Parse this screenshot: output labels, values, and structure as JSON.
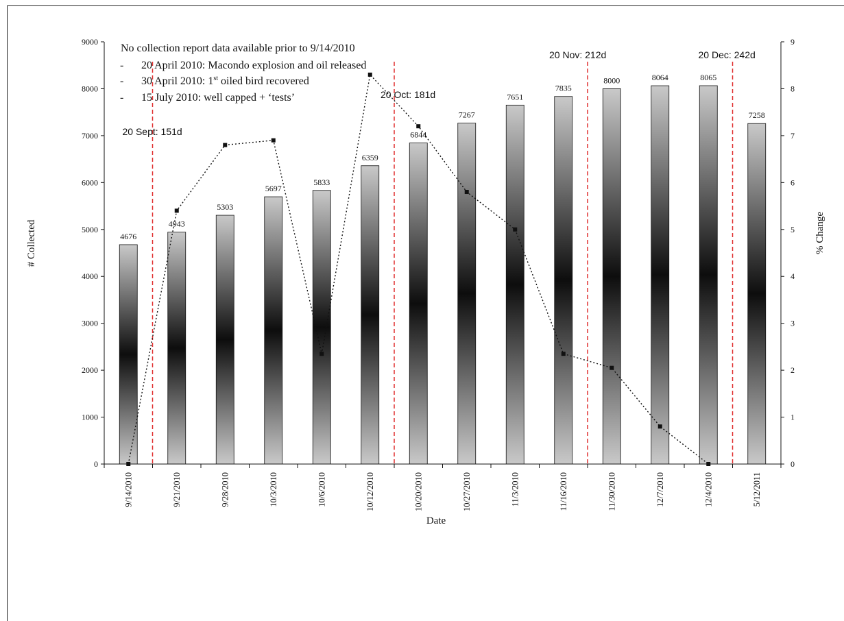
{
  "chart_data": {
    "type": "bar",
    "categories": [
      "9/14/2010",
      "9/21/2010",
      "9/28/2010",
      "10/3/2010",
      "10/6/2010",
      "10/12/2010",
      "10/20/2010",
      "10/27/2010",
      "11/3/2010",
      "11/16/2010",
      "11/30/2010",
      "12/7/2010",
      "12/4/2010",
      "5/12/2011"
    ],
    "values": [
      4676,
      4943,
      5303,
      5697,
      5833,
      6359,
      6844,
      7267,
      7651,
      7835,
      8000,
      8064,
      8065,
      7258
    ],
    "value_labels": [
      "4676",
      "4943",
      "5303",
      "5697",
      "5833",
      "6359",
      "6844",
      "7267",
      "7651",
      "7835",
      "8000",
      "8064",
      "8065",
      "7258"
    ],
    "line_series": {
      "axis": "right",
      "style": "dotted-black-square-markers",
      "values": [
        0,
        5.4,
        6.8,
        6.9,
        2.35,
        8.3,
        7.2,
        5.8,
        5.0,
        2.35,
        2.05,
        0.8,
        0,
        null
      ]
    },
    "xlabel": "Date",
    "ylabel": "# Collected",
    "y2label": "% Change",
    "ylim": [
      0,
      9000
    ],
    "y2lim": [
      0,
      9
    ],
    "yticks": [
      "0",
      "1000",
      "2000",
      "3000",
      "4000",
      "5000",
      "6000",
      "7000",
      "8000",
      "9000"
    ],
    "y2ticks": [
      "0",
      "1",
      "2",
      "3",
      "4",
      "5",
      "6",
      "7",
      "8",
      "9"
    ],
    "annotation_lines": [
      {
        "label": "20 Sept: 151d",
        "between": [
          0,
          1
        ],
        "color": "#e03030"
      },
      {
        "label": "20 Oct: 181d",
        "between": [
          5,
          6
        ],
        "color": "#e03030"
      },
      {
        "label": "20 Nov: 212d",
        "between": [
          9,
          10
        ],
        "color": "#e03030"
      },
      {
        "label": "20 Dec: 242d",
        "between": [
          12,
          13
        ],
        "color": "#e03030"
      }
    ],
    "notes": {
      "heading": "No collection report data available prior to 9/14/2010",
      "bullets": [
        {
          "dash": "-",
          "text": "20 April  2010: Macondo explosion  and oil released"
        },
        {
          "dash": "-",
          "pre": "30 April  2010: 1",
          "sup": "st",
          "post": " oiled bird recovered"
        },
        {
          "dash": "-",
          "text": "15 July  2010: well  capped + ‘tests’"
        }
      ]
    },
    "bar_fill": "vertical grey-black-grey gradient",
    "line_color": "#111111"
  }
}
